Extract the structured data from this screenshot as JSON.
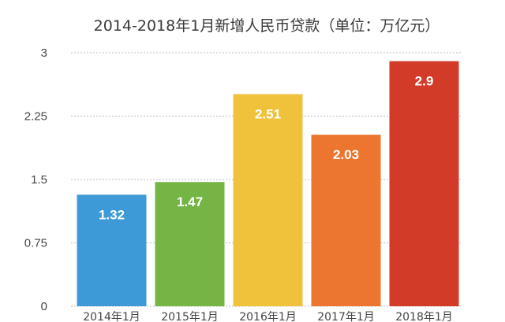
{
  "chart_data": {
    "type": "bar",
    "title": "2014-2018年1月新增人民币贷款（单位：万亿元）",
    "xlabel": "",
    "ylabel": "",
    "categories": [
      "2014年1月",
      "2015年1月",
      "2016年1月",
      "2017年1月",
      "2018年1月"
    ],
    "values": [
      1.32,
      1.47,
      2.51,
      2.03,
      2.9
    ],
    "data_labels": [
      "1.32",
      "1.47",
      "2.51",
      "2.03",
      "2.9"
    ],
    "colors": [
      "#3d9ad7",
      "#74b545",
      "#f0c23c",
      "#ec7630",
      "#d23b27"
    ],
    "ylim": [
      0,
      3
    ],
    "yticks": [
      0,
      0.75,
      1.5,
      2.25,
      3
    ],
    "ytick_labels": [
      "0",
      "0.75",
      "1.5",
      "2.25",
      "3"
    ],
    "grid": true,
    "legend": "none"
  }
}
